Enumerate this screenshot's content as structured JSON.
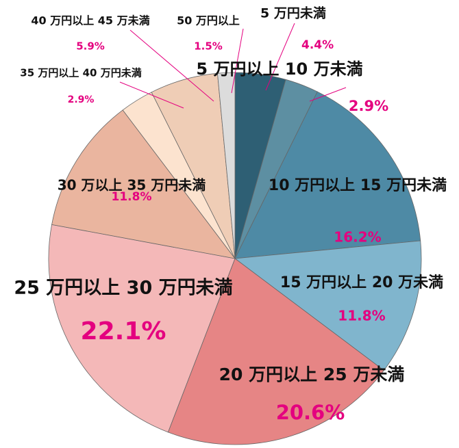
{
  "chart_data": {
    "type": "pie",
    "title": "",
    "slices": [
      {
        "label": "5 万円未満",
        "value": 4.4,
        "display": "4.4%",
        "color": "#2e5f74"
      },
      {
        "label": "5 万円以上 10 万未満",
        "value": 2.9,
        "display": "2.9%",
        "color": "#5d8fa2"
      },
      {
        "label": "10 万円以上 15 万円未満",
        "value": 16.2,
        "display": "16.2%",
        "color": "#4e8aa5"
      },
      {
        "label": "15 万円以上 20 万未満",
        "value": 11.8,
        "display": "11.8%",
        "color": "#80b5cd"
      },
      {
        "label": "20 万円以上 25 万未満",
        "value": 20.6,
        "display": "20.6%",
        "color": "#e68585"
      },
      {
        "label": "25 万円以上 30 万円未満",
        "value": 22.1,
        "display": "22.1%",
        "color": "#f4b8b8"
      },
      {
        "label": "30 万以上 35 万円未満",
        "value": 11.8,
        "display": "11.8%",
        "color": "#eab59f"
      },
      {
        "label": "35 万円以上 40 万円未満",
        "value": 2.9,
        "display": "2.9%",
        "color": "#fce3cf"
      },
      {
        "label": "40 万円以上 45 万未満",
        "value": 5.9,
        "display": "5.9%",
        "color": "#efcdb6"
      },
      {
        "label": "50 万円以上",
        "value": 1.5,
        "display": "1.5%",
        "color": "#dcdcdc"
      }
    ]
  }
}
